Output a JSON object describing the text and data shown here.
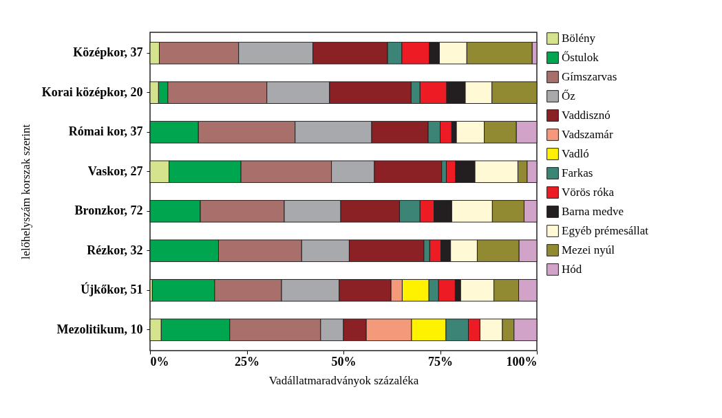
{
  "chart_data": {
    "type": "bar",
    "orientation": "horizontal",
    "stacked": true,
    "xlabel": "Vadállatmaradványok százaléka",
    "ylabel": "lelőhelyszám korszak szerint",
    "categories": [
      "Középkor, 37",
      "Korai középkor, 20",
      "Római kor, 37",
      "Vaskor, 27",
      "Bronzkor, 72",
      "Rézkor, 32",
      "Újkőkor, 51",
      "Mezolitikum, 10"
    ],
    "xlim": [
      0,
      100
    ],
    "xticks": [
      {
        "value": 0,
        "label": "0%"
      },
      {
        "value": 25,
        "label": "25%"
      },
      {
        "value": 50,
        "label": "50%"
      },
      {
        "value": 75,
        "label": "75%"
      },
      {
        "value": 100,
        "label": "100%"
      }
    ],
    "legend": "right",
    "series": [
      {
        "name": "Bölény",
        "color": "#d4e38c",
        "values": [
          2.4,
          2.2,
          null,
          4.9,
          null,
          null,
          0.6,
          2.9
        ]
      },
      {
        "name": "Őstulok",
        "color": "#00a550",
        "values": [
          null,
          2.4,
          12.5,
          18.6,
          13.0,
          17.7,
          16.1,
          17.7
        ]
      },
      {
        "name": "Gímszarvas",
        "color": "#a9706b",
        "values": [
          20.5,
          25.6,
          25.0,
          23.4,
          21.7,
          21.5,
          17.3,
          23.5
        ]
      },
      {
        "name": "Őz",
        "color": "#a8a9ad",
        "values": [
          19.2,
          16.2,
          19.8,
          11.1,
          14.6,
          12.3,
          14.9,
          5.9
        ]
      },
      {
        "name": "Vaddisznó",
        "color": "#8b2025",
        "values": [
          19.3,
          21.1,
          14.6,
          17.4,
          15.2,
          19.3,
          13.4,
          5.9
        ]
      },
      {
        "name": "Vadszamár",
        "color": "#f5997b",
        "values": [
          null,
          null,
          null,
          null,
          null,
          null,
          2.9,
          11.7
        ]
      },
      {
        "name": "Vadló",
        "color": "#fff200",
        "values": [
          null,
          null,
          null,
          null,
          null,
          null,
          6.9,
          8.9
        ]
      },
      {
        "name": "Farkas",
        "color": "#3c8476",
        "values": [
          3.7,
          2.3,
          3.1,
          1.2,
          5.3,
          1.5,
          2.5,
          5.8
        ]
      },
      {
        "name": "Vörös róka",
        "color": "#ed1c24",
        "values": [
          7.1,
          6.9,
          3.0,
          2.4,
          3.6,
          2.9,
          4.3,
          3.0
        ]
      },
      {
        "name": "Barna medve",
        "color": "#231f20",
        "values": [
          2.6,
          4.8,
          1.2,
          5.0,
          4.6,
          2.5,
          1.4,
          null
        ]
      },
      {
        "name": "Egyéb prémesállat",
        "color": "#fffad5",
        "values": [
          7.1,
          6.9,
          7.2,
          11.1,
          10.5,
          6.9,
          8.6,
          5.8
        ]
      },
      {
        "name": "Mezei nyúl",
        "color": "#928a33",
        "values": [
          16.9,
          11.6,
          8.3,
          2.4,
          8.2,
          10.8,
          6.4,
          3.0
        ]
      },
      {
        "name": "Hód",
        "color": "#d1a3c8",
        "values": [
          1.2,
          null,
          5.3,
          2.5,
          3.3,
          4.6,
          4.7,
          5.9
        ]
      }
    ]
  }
}
